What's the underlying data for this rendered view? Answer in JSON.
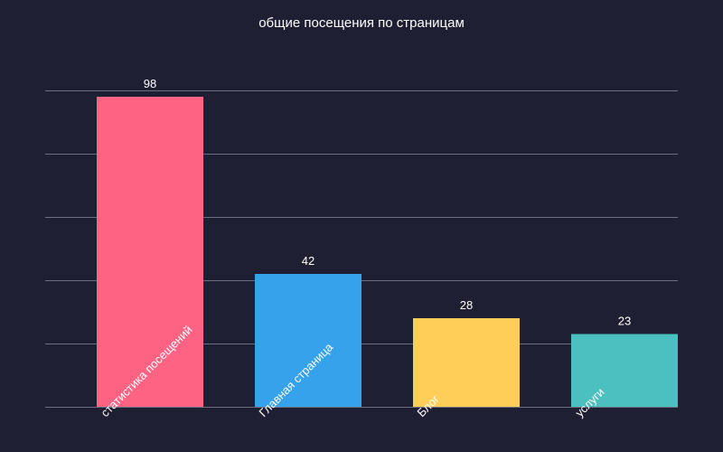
{
  "chart_data": {
    "type": "bar",
    "title": "общие посещения по страницам",
    "xlabel": "",
    "ylabel": "",
    "categories": [
      "статистика посещений",
      "Главная страница",
      "Блог",
      "услуги"
    ],
    "values": [
      98,
      42,
      28,
      23
    ],
    "colors": [
      "#ff6384",
      "#36a2eb",
      "#ffce56",
      "#4bc0c0"
    ],
    "ylim": [
      0,
      100
    ],
    "grid": true,
    "legend": "none"
  },
  "theme": {
    "background": "#1f1f33",
    "text": "#ffffff",
    "grid": "#6e6e80"
  }
}
